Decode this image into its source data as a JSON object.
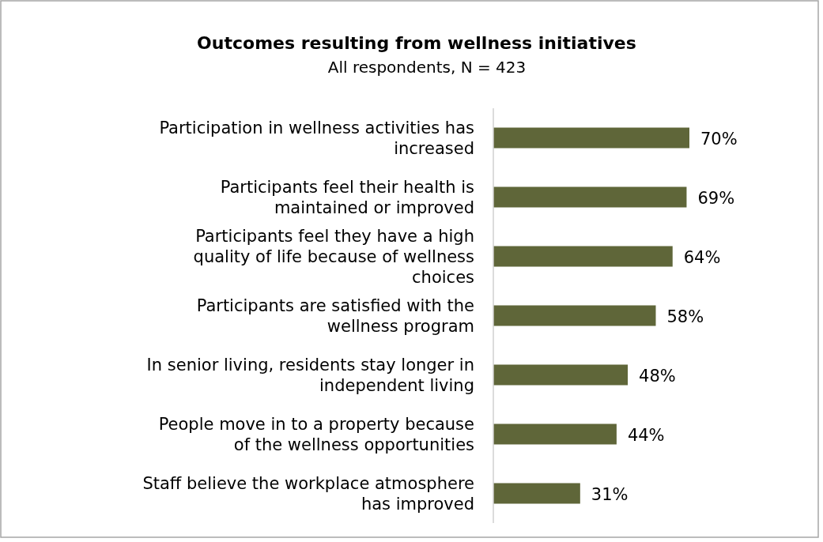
{
  "chart_data": {
    "type": "bar",
    "orientation": "horizontal",
    "title": "Outcomes resulting from wellness initiatives",
    "subtitle": "All respondents, N = 423",
    "categories": [
      "Participation in wellness activities has increased",
      "Participants feel their health is maintained or improved",
      "Participants feel they have a high quality of life because of wellness choices",
      "Participants are satisfied with the wellness program",
      "In senior living, residents stay longer in independent living",
      "People move in to a property because of the wellness opportunities",
      "Staff believe the workplace atmosphere has improved"
    ],
    "values": [
      70,
      69,
      64,
      58,
      48,
      44,
      31
    ],
    "value_labels": [
      "70%",
      "69%",
      "64%",
      "58%",
      "48%",
      "44%",
      "31%"
    ],
    "color": "#5f6639",
    "grid": false
  }
}
